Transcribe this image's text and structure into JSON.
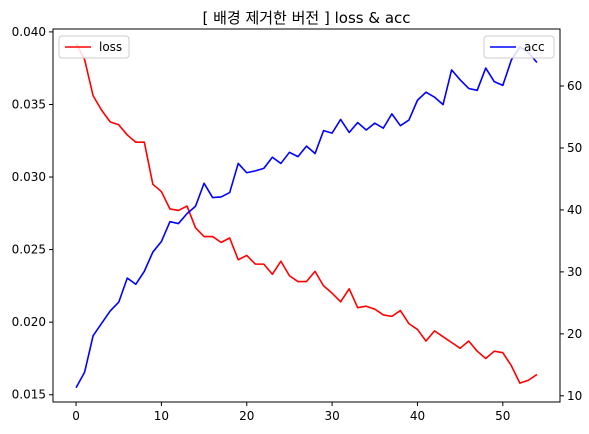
{
  "chart_data": {
    "type": "line",
    "title": "[ 배경 제거한 버전 ] loss & acc",
    "xlabel": "",
    "ylabel_left": "",
    "ylabel_right": "",
    "x": [
      0,
      1,
      2,
      3,
      4,
      5,
      6,
      7,
      8,
      9,
      10,
      11,
      12,
      13,
      14,
      15,
      16,
      17,
      18,
      19,
      20,
      21,
      22,
      23,
      24,
      25,
      26,
      27,
      28,
      29,
      30,
      31,
      32,
      33,
      34,
      35,
      36,
      37,
      38,
      39,
      40,
      41,
      42,
      43,
      44,
      45,
      46,
      47,
      48,
      49,
      50,
      51,
      52,
      53,
      54
    ],
    "xlim": [
      -2.7,
      56.7
    ],
    "xticks": [
      0,
      10,
      20,
      30,
      40,
      50
    ],
    "ylim_left": [
      0.0145,
      0.0402
    ],
    "yticks_left": [
      0.015,
      0.02,
      0.025,
      0.03,
      0.035,
      0.04
    ],
    "yticklabels_left": [
      "0.015",
      "0.020",
      "0.025",
      "0.030",
      "0.035",
      "0.040"
    ],
    "ylim_right": [
      9.0,
      69.2
    ],
    "yticks_right": [
      10,
      20,
      30,
      40,
      50,
      60
    ],
    "grid": false,
    "series": [
      {
        "name": "loss",
        "axis": "left",
        "color": "#ff0000",
        "legend_position": "top-left",
        "values": [
          0.0392,
          0.0381,
          0.0356,
          0.0346,
          0.0338,
          0.0336,
          0.0329,
          0.0324,
          0.0324,
          0.0295,
          0.029,
          0.0278,
          0.0277,
          0.028,
          0.0265,
          0.0259,
          0.0259,
          0.0255,
          0.0258,
          0.0243,
          0.0246,
          0.024,
          0.024,
          0.0233,
          0.0242,
          0.0232,
          0.0228,
          0.0228,
          0.0235,
          0.0225,
          0.022,
          0.0214,
          0.0223,
          0.021,
          0.0211,
          0.0209,
          0.0205,
          0.0204,
          0.0208,
          0.0199,
          0.0195,
          0.0187,
          0.0194,
          0.019,
          0.0186,
          0.0182,
          0.0187,
          0.018,
          0.0175,
          0.018,
          0.0179,
          0.017,
          0.0158,
          0.016,
          0.0164
        ]
      },
      {
        "name": "acc",
        "axis": "right",
        "color": "#0000ff",
        "legend_position": "top-right",
        "values": [
          11.3,
          13.8,
          19.7,
          21.7,
          23.7,
          25.1,
          29.0,
          28.0,
          30.1,
          33.2,
          34.9,
          38.1,
          37.8,
          39.4,
          40.6,
          44.3,
          42.0,
          42.1,
          42.8,
          47.5,
          46.0,
          46.3,
          46.7,
          48.5,
          47.5,
          49.3,
          48.6,
          50.3,
          49.1,
          52.8,
          52.4,
          54.6,
          52.5,
          54.1,
          52.9,
          54.0,
          53.2,
          55.5,
          53.6,
          54.5,
          57.7,
          59.0,
          58.2,
          57.0,
          62.6,
          61.0,
          59.6,
          59.3,
          62.9,
          60.7,
          60.1,
          64.2,
          66.3,
          65.4,
          63.8
        ]
      }
    ]
  }
}
